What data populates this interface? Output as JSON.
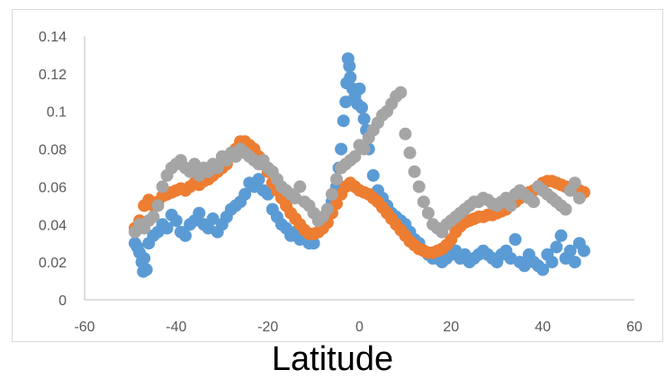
{
  "chart_data": {
    "type": "scatter",
    "xlabel": "Latitude",
    "ylabel": "",
    "title": "",
    "xlim": [
      -60,
      60
    ],
    "ylim": [
      0,
      0.14
    ],
    "x_ticks": [
      "-60",
      "-40",
      "-20",
      "0",
      "20",
      "40",
      "60"
    ],
    "y_ticks": [
      "0",
      "0.02",
      "0.04",
      "0.06",
      "0.08",
      "0.1",
      "0.12",
      "0.14"
    ],
    "grid": false,
    "legend": "none",
    "series": [
      {
        "color": "#5b9bd5",
        "points": [
          [
            -49,
            0.03
          ],
          [
            -48.5,
            0.028
          ],
          [
            -48,
            0.025
          ],
          [
            -47.5,
            0.02
          ],
          [
            -47.2,
            0.015
          ],
          [
            -47,
            0.022
          ],
          [
            -46.5,
            0.016
          ],
          [
            -46,
            0.03
          ],
          [
            -45,
            0.034
          ],
          [
            -44,
            0.036
          ],
          [
            -43,
            0.04
          ],
          [
            -42,
            0.038
          ],
          [
            -41,
            0.045
          ],
          [
            -40,
            0.042
          ],
          [
            -39,
            0.036
          ],
          [
            -38,
            0.034
          ],
          [
            -37,
            0.04
          ],
          [
            -36,
            0.042
          ],
          [
            -35,
            0.046
          ],
          [
            -34,
            0.04
          ],
          [
            -33,
            0.038
          ],
          [
            -32,
            0.043
          ],
          [
            -31,
            0.036
          ],
          [
            -30,
            0.04
          ],
          [
            -29,
            0.044
          ],
          [
            -28,
            0.048
          ],
          [
            -27,
            0.05
          ],
          [
            -26,
            0.052
          ],
          [
            -25,
            0.056
          ],
          [
            -24,
            0.062
          ],
          [
            -23,
            0.06
          ],
          [
            -22,
            0.064
          ],
          [
            -21,
            0.058
          ],
          [
            -20,
            0.056
          ],
          [
            -19,
            0.048
          ],
          [
            -18,
            0.044
          ],
          [
            -17,
            0.04
          ],
          [
            -16,
            0.038
          ],
          [
            -15,
            0.034
          ],
          [
            -14,
            0.036
          ],
          [
            -13,
            0.032
          ],
          [
            -12,
            0.034
          ],
          [
            -11,
            0.03
          ],
          [
            -10,
            0.03
          ],
          [
            -9,
            0.036
          ],
          [
            -8,
            0.04
          ],
          [
            -7,
            0.046
          ],
          [
            -6,
            0.052
          ],
          [
            -5,
            0.06
          ],
          [
            -4.5,
            0.07
          ],
          [
            -4,
            0.08
          ],
          [
            -3.5,
            0.095
          ],
          [
            -3,
            0.105
          ],
          [
            -2.8,
            0.115
          ],
          [
            -2.5,
            0.128
          ],
          [
            -2.2,
            0.124
          ],
          [
            -2,
            0.118
          ],
          [
            -1.5,
            0.112
          ],
          [
            -1,
            0.108
          ],
          [
            -0.5,
            0.104
          ],
          [
            0,
            0.112
          ],
          [
            0.5,
            0.102
          ],
          [
            1,
            0.096
          ],
          [
            1.5,
            0.09
          ],
          [
            2,
            0.08
          ],
          [
            3,
            0.066
          ],
          [
            4,
            0.058
          ],
          [
            5,
            0.054
          ],
          [
            6,
            0.05
          ],
          [
            7,
            0.046
          ],
          [
            8,
            0.044
          ],
          [
            9,
            0.042
          ],
          [
            10,
            0.04
          ],
          [
            11,
            0.036
          ],
          [
            12,
            0.032
          ],
          [
            13,
            0.03
          ],
          [
            14,
            0.026
          ],
          [
            15,
            0.024
          ],
          [
            16,
            0.022
          ],
          [
            17,
            0.022
          ],
          [
            18,
            0.02
          ],
          [
            19,
            0.022
          ],
          [
            20,
            0.024
          ],
          [
            21,
            0.026
          ],
          [
            22,
            0.022
          ],
          [
            23,
            0.024
          ],
          [
            24,
            0.02
          ],
          [
            25,
            0.022
          ],
          [
            26,
            0.024
          ],
          [
            27,
            0.026
          ],
          [
            28,
            0.024
          ],
          [
            29,
            0.022
          ],
          [
            30,
            0.02
          ],
          [
            31,
            0.024
          ],
          [
            32,
            0.026
          ],
          [
            33,
            0.022
          ],
          [
            34,
            0.032
          ],
          [
            35,
            0.02
          ],
          [
            36,
            0.018
          ],
          [
            37,
            0.024
          ],
          [
            38,
            0.02
          ],
          [
            39,
            0.018
          ],
          [
            40,
            0.016
          ],
          [
            41,
            0.024
          ],
          [
            42,
            0.02
          ],
          [
            43,
            0.028
          ],
          [
            44,
            0.034
          ],
          [
            45,
            0.022
          ],
          [
            46,
            0.026
          ],
          [
            47,
            0.02
          ],
          [
            48,
            0.03
          ],
          [
            49,
            0.026
          ]
        ]
      },
      {
        "color": "#ed7d31",
        "points": [
          [
            -49,
            0.038
          ],
          [
            -48,
            0.042
          ],
          [
            -47,
            0.05
          ],
          [
            -46,
            0.053
          ],
          [
            -45,
            0.05
          ],
          [
            -44,
            0.052
          ],
          [
            -43,
            0.055
          ],
          [
            -42,
            0.056
          ],
          [
            -41,
            0.057
          ],
          [
            -40,
            0.058
          ],
          [
            -39,
            0.059
          ],
          [
            -38,
            0.058
          ],
          [
            -37,
            0.06
          ],
          [
            -36,
            0.062
          ],
          [
            -35,
            0.061
          ],
          [
            -34,
            0.063
          ],
          [
            -33,
            0.064
          ],
          [
            -32,
            0.066
          ],
          [
            -31,
            0.068
          ],
          [
            -30,
            0.07
          ],
          [
            -29,
            0.072
          ],
          [
            -28,
            0.076
          ],
          [
            -27,
            0.08
          ],
          [
            -26,
            0.084
          ],
          [
            -25,
            0.084
          ],
          [
            -24,
            0.082
          ],
          [
            -23,
            0.08
          ],
          [
            -22,
            0.076
          ],
          [
            -21,
            0.072
          ],
          [
            -20,
            0.068
          ],
          [
            -19,
            0.062
          ],
          [
            -18,
            0.058
          ],
          [
            -17,
            0.054
          ],
          [
            -16,
            0.05
          ],
          [
            -15,
            0.046
          ],
          [
            -14,
            0.043
          ],
          [
            -13,
            0.04
          ],
          [
            -12,
            0.037
          ],
          [
            -11,
            0.035
          ],
          [
            -10,
            0.035
          ],
          [
            -9,
            0.036
          ],
          [
            -8,
            0.038
          ],
          [
            -7,
            0.041
          ],
          [
            -6,
            0.046
          ],
          [
            -5,
            0.051
          ],
          [
            -4,
            0.056
          ],
          [
            -3,
            0.06
          ],
          [
            -2,
            0.062
          ],
          [
            -1,
            0.06
          ],
          [
            0,
            0.058
          ],
          [
            1,
            0.057
          ],
          [
            2,
            0.056
          ],
          [
            3,
            0.054
          ],
          [
            4,
            0.052
          ],
          [
            5,
            0.049
          ],
          [
            6,
            0.046
          ],
          [
            7,
            0.043
          ],
          [
            8,
            0.04
          ],
          [
            9,
            0.037
          ],
          [
            10,
            0.034
          ],
          [
            11,
            0.031
          ],
          [
            12,
            0.029
          ],
          [
            13,
            0.027
          ],
          [
            14,
            0.026
          ],
          [
            15,
            0.025
          ],
          [
            16,
            0.025
          ],
          [
            17,
            0.026
          ],
          [
            18,
            0.027
          ],
          [
            19,
            0.029
          ],
          [
            20,
            0.032
          ],
          [
            21,
            0.036
          ],
          [
            22,
            0.039
          ],
          [
            23,
            0.041
          ],
          [
            24,
            0.042
          ],
          [
            25,
            0.043
          ],
          [
            26,
            0.044
          ],
          [
            27,
            0.044
          ],
          [
            28,
            0.045
          ],
          [
            29,
            0.045
          ],
          [
            30,
            0.046
          ],
          [
            31,
            0.047
          ],
          [
            32,
            0.048
          ],
          [
            33,
            0.05
          ],
          [
            34,
            0.052
          ],
          [
            35,
            0.054
          ],
          [
            36,
            0.056
          ],
          [
            37,
            0.057
          ],
          [
            38,
            0.058
          ],
          [
            39,
            0.06
          ],
          [
            40,
            0.062
          ],
          [
            41,
            0.063
          ],
          [
            42,
            0.063
          ],
          [
            43,
            0.062
          ],
          [
            44,
            0.061
          ],
          [
            45,
            0.06
          ],
          [
            46,
            0.059
          ],
          [
            47,
            0.058
          ],
          [
            48,
            0.058
          ],
          [
            49,
            0.057
          ]
        ]
      },
      {
        "color": "#a5a5a5",
        "points": [
          [
            -49,
            0.036
          ],
          [
            -48,
            0.04
          ],
          [
            -47,
            0.038
          ],
          [
            -46,
            0.042
          ],
          [
            -45,
            0.044
          ],
          [
            -44,
            0.05
          ],
          [
            -43,
            0.06
          ],
          [
            -42,
            0.066
          ],
          [
            -41,
            0.07
          ],
          [
            -40,
            0.072
          ],
          [
            -39,
            0.074
          ],
          [
            -38,
            0.07
          ],
          [
            -37,
            0.068
          ],
          [
            -36,
            0.072
          ],
          [
            -35,
            0.066
          ],
          [
            -34,
            0.07
          ],
          [
            -33,
            0.068
          ],
          [
            -32,
            0.072
          ],
          [
            -31,
            0.07
          ],
          [
            -30,
            0.076
          ],
          [
            -29,
            0.074
          ],
          [
            -28,
            0.078
          ],
          [
            -27,
            0.076
          ],
          [
            -26,
            0.08
          ],
          [
            -25,
            0.078
          ],
          [
            -24,
            0.076
          ],
          [
            -23,
            0.074
          ],
          [
            -22,
            0.072
          ],
          [
            -21,
            0.074
          ],
          [
            -20,
            0.07
          ],
          [
            -19,
            0.068
          ],
          [
            -18,
            0.064
          ],
          [
            -17,
            0.06
          ],
          [
            -16,
            0.058
          ],
          [
            -15,
            0.056
          ],
          [
            -14,
            0.054
          ],
          [
            -13,
            0.06
          ],
          [
            -12,
            0.052
          ],
          [
            -11,
            0.05
          ],
          [
            -10,
            0.046
          ],
          [
            -9,
            0.042
          ],
          [
            -8,
            0.044
          ],
          [
            -7,
            0.048
          ],
          [
            -6,
            0.056
          ],
          [
            -5,
            0.064
          ],
          [
            -4,
            0.07
          ],
          [
            -3,
            0.072
          ],
          [
            -2,
            0.074
          ],
          [
            -1,
            0.076
          ],
          [
            0,
            0.082
          ],
          [
            1,
            0.08
          ],
          [
            2,
            0.086
          ],
          [
            3,
            0.09
          ],
          [
            4,
            0.094
          ],
          [
            5,
            0.098
          ],
          [
            6,
            0.1
          ],
          [
            7,
            0.104
          ],
          [
            8,
            0.108
          ],
          [
            9,
            0.11
          ],
          [
            10,
            0.088
          ],
          [
            11,
            0.078
          ],
          [
            12,
            0.068
          ],
          [
            13,
            0.06
          ],
          [
            14,
            0.052
          ],
          [
            15,
            0.046
          ],
          [
            16,
            0.04
          ],
          [
            17,
            0.038
          ],
          [
            18,
            0.036
          ],
          [
            19,
            0.04
          ],
          [
            20,
            0.042
          ],
          [
            21,
            0.044
          ],
          [
            22,
            0.046
          ],
          [
            23,
            0.048
          ],
          [
            24,
            0.05
          ],
          [
            25,
            0.052
          ],
          [
            26,
            0.052
          ],
          [
            27,
            0.054
          ],
          [
            28,
            0.053
          ],
          [
            29,
            0.051
          ],
          [
            30,
            0.05
          ],
          [
            31,
            0.052
          ],
          [
            32,
            0.054
          ],
          [
            33,
            0.05
          ],
          [
            34,
            0.056
          ],
          [
            35,
            0.058
          ],
          [
            36,
            0.056
          ],
          [
            37,
            0.054
          ],
          [
            38,
            0.052
          ],
          [
            39,
            0.06
          ],
          [
            40,
            0.058
          ],
          [
            41,
            0.056
          ],
          [
            42,
            0.054
          ],
          [
            43,
            0.052
          ],
          [
            44,
            0.05
          ],
          [
            45,
            0.048
          ],
          [
            46,
            0.058
          ],
          [
            47,
            0.062
          ],
          [
            48,
            0.054
          ]
        ]
      }
    ]
  }
}
